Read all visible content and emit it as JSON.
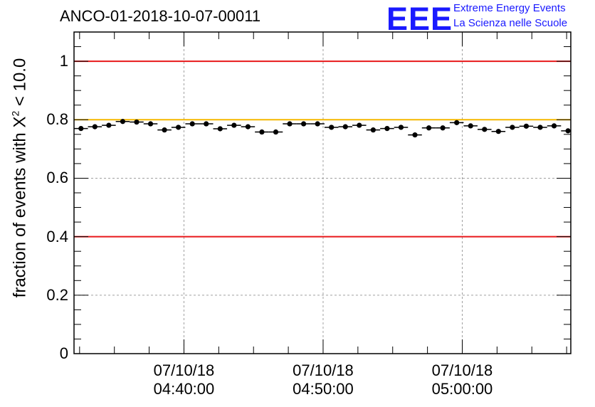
{
  "chart_data": {
    "type": "scatter",
    "title": "ANCO-01-2018-10-07-00011",
    "ylabel": {
      "prefix": "fraction of events with ",
      "symbol": "X",
      "superscript": "2",
      "suffix": " < 10.0"
    },
    "xlabel": "",
    "ylim": [
      0,
      1.1
    ],
    "yticks": [
      {
        "value": 0,
        "label": "0"
      },
      {
        "value": 0.2,
        "label": "0.2"
      },
      {
        "value": 0.4,
        "label": "0.4"
      },
      {
        "value": 0.6,
        "label": "0.6"
      },
      {
        "value": 0.8,
        "label": "0.8"
      },
      {
        "value": 1,
        "label": "1"
      }
    ],
    "xlim_minutes": [
      4.6,
      40.3
    ],
    "xticks": [
      {
        "minute": 12.5,
        "date": "07/10/18",
        "time": "04:40:00"
      },
      {
        "minute": 22.5,
        "date": "07/10/18",
        "time": "04:50:00"
      },
      {
        "minute": 32.5,
        "date": "07/10/18",
        "time": "05:00:00"
      }
    ],
    "grid": true,
    "reference_lines": [
      {
        "y": 1.0,
        "color": "#e8181a"
      },
      {
        "y": 0.4,
        "color": "#e8181a"
      },
      {
        "y": 0.8,
        "color": "#f5b800"
      }
    ],
    "series": [
      {
        "name": "fraction",
        "bin_width_minutes": 1,
        "x_minutes": [
          5.1,
          6.1,
          7.1,
          8.1,
          9.1,
          10.1,
          11.1,
          12.1,
          13.1,
          14.1,
          15.1,
          16.1,
          17.1,
          18.1,
          19.1,
          20.1,
          21.1,
          22.1,
          23.1,
          24.1,
          25.1,
          26.1,
          27.1,
          28.1,
          29.1,
          30.1,
          31.1,
          32.1,
          33.1,
          34.1,
          35.1,
          36.1,
          37.1,
          38.1,
          39.1,
          40.1
        ],
        "y": [
          0.77,
          0.776,
          0.781,
          0.794,
          0.792,
          0.786,
          0.765,
          0.774,
          0.786,
          0.786,
          0.769,
          0.781,
          0.776,
          0.758,
          0.758,
          0.786,
          0.786,
          0.786,
          0.774,
          0.776,
          0.781,
          0.765,
          0.77,
          0.774,
          0.748,
          0.772,
          0.772,
          0.79,
          0.779,
          0.767,
          0.76,
          0.774,
          0.778,
          0.774,
          0.779,
          0.762
        ],
        "err": [
          0.008,
          0.008,
          0.008,
          0.008,
          0.008,
          0.008,
          0.008,
          0.008,
          0.008,
          0.008,
          0.008,
          0.008,
          0.008,
          0.008,
          0.008,
          0.008,
          0.008,
          0.008,
          0.008,
          0.008,
          0.008,
          0.008,
          0.008,
          0.008,
          0.008,
          0.008,
          0.008,
          0.008,
          0.008,
          0.008,
          0.008,
          0.008,
          0.008,
          0.008,
          0.008,
          0.008
        ]
      }
    ]
  },
  "logo": {
    "mark": "EEE",
    "line1": "Extreme Energy Events",
    "line2": "La Scienza nelle Scuole",
    "color": "#1a1aff"
  }
}
